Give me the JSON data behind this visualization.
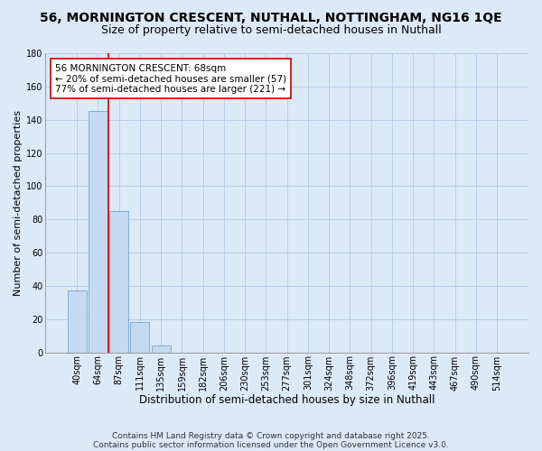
{
  "title": "56, MORNINGTON CRESCENT, NUTHALL, NOTTINGHAM, NG16 1QE",
  "subtitle": "Size of property relative to semi-detached houses in Nuthall",
  "xlabel": "Distribution of semi-detached houses by size in Nuthall",
  "ylabel": "Number of semi-detached properties",
  "bar_labels": [
    "40sqm",
    "64sqm",
    "87sqm",
    "111sqm",
    "135sqm",
    "159sqm",
    "182sqm",
    "206sqm",
    "230sqm",
    "253sqm",
    "277sqm",
    "301sqm",
    "324sqm",
    "348sqm",
    "372sqm",
    "396sqm",
    "419sqm",
    "443sqm",
    "467sqm",
    "490sqm",
    "514sqm"
  ],
  "bar_values": [
    37,
    145,
    85,
    18,
    4,
    0,
    0,
    0,
    0,
    0,
    0,
    0,
    0,
    0,
    0,
    0,
    0,
    0,
    0,
    0,
    0
  ],
  "bar_color": "#c6d9f0",
  "bar_edge_color": "#7fb0d8",
  "background_color": "#dce9f7",
  "grid_color": "#b8cfe8",
  "vline_x": 1.5,
  "vline_color": "#cc0000",
  "annotation_title": "56 MORNINGTON CRESCENT: 68sqm",
  "annotation_line1": "← 20% of semi-detached houses are smaller (57)",
  "annotation_line2": "77% of semi-detached houses are larger (221) →",
  "annotation_box_color": "#ffffff",
  "annotation_border_color": "#cc0000",
  "ylim": [
    0,
    180
  ],
  "yticks": [
    0,
    20,
    40,
    60,
    80,
    100,
    120,
    140,
    160,
    180
  ],
  "footer_line1": "Contains HM Land Registry data © Crown copyright and database right 2025.",
  "footer_line2": "Contains public sector information licensed under the Open Government Licence v3.0.",
  "title_fontsize": 10,
  "subtitle_fontsize": 9,
  "xlabel_fontsize": 8.5,
  "ylabel_fontsize": 8,
  "annotation_fontsize": 7.5,
  "tick_fontsize": 7,
  "footer_fontsize": 6.5
}
